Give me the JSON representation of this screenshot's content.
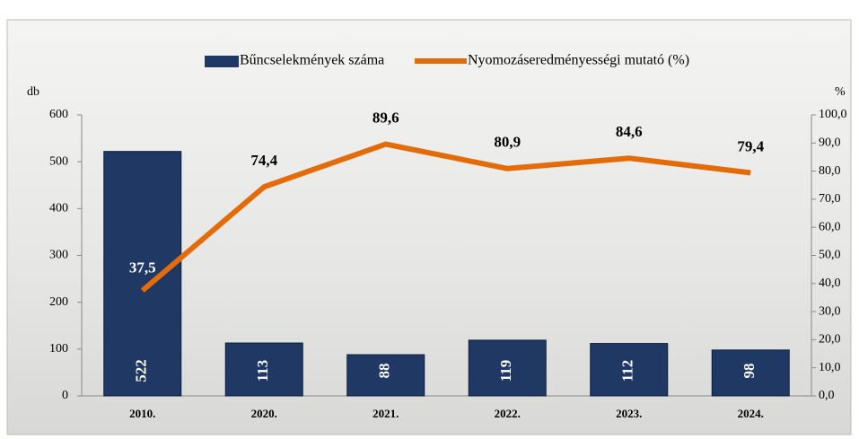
{
  "chart_data": {
    "type": "bar_line",
    "y_label": "db",
    "y2_label": "%",
    "categories": [
      "2010.",
      "2020.",
      "2021.",
      "2022.",
      "2023.",
      "2024."
    ],
    "series": [
      {
        "name": "Bűncselekmények száma",
        "type": "bar",
        "color": "#1f3864",
        "values": [
          522,
          113,
          88,
          119,
          112,
          98
        ]
      },
      {
        "name": "Nyomozáseredményességi mutató (%)",
        "type": "line",
        "axis": "y2",
        "color": "#e36c09",
        "values": [
          37.5,
          74.4,
          89.6,
          80.9,
          84.6,
          79.4
        ],
        "value_labels": [
          "37,5",
          "74,4",
          "89,6",
          "80,9",
          "84,6",
          "79,4"
        ]
      }
    ],
    "ylim": [
      0,
      600
    ],
    "yticks": [
      0,
      100,
      200,
      300,
      400,
      500,
      600
    ],
    "y2lim": [
      0,
      100
    ],
    "y2ticks": [
      {
        "value": 0,
        "label": "0,0"
      },
      {
        "value": 10,
        "label": "10,0"
      },
      {
        "value": 20,
        "label": "20,0"
      },
      {
        "value": 30,
        "label": "30,0"
      },
      {
        "value": 40,
        "label": "40,0"
      },
      {
        "value": 50,
        "label": "50,0"
      },
      {
        "value": 60,
        "label": "60,0"
      },
      {
        "value": 70,
        "label": "70,0"
      },
      {
        "value": 80,
        "label": "80,0"
      },
      {
        "value": 90,
        "label": "90,0"
      },
      {
        "value": 100,
        "label": "100,0"
      }
    ]
  }
}
